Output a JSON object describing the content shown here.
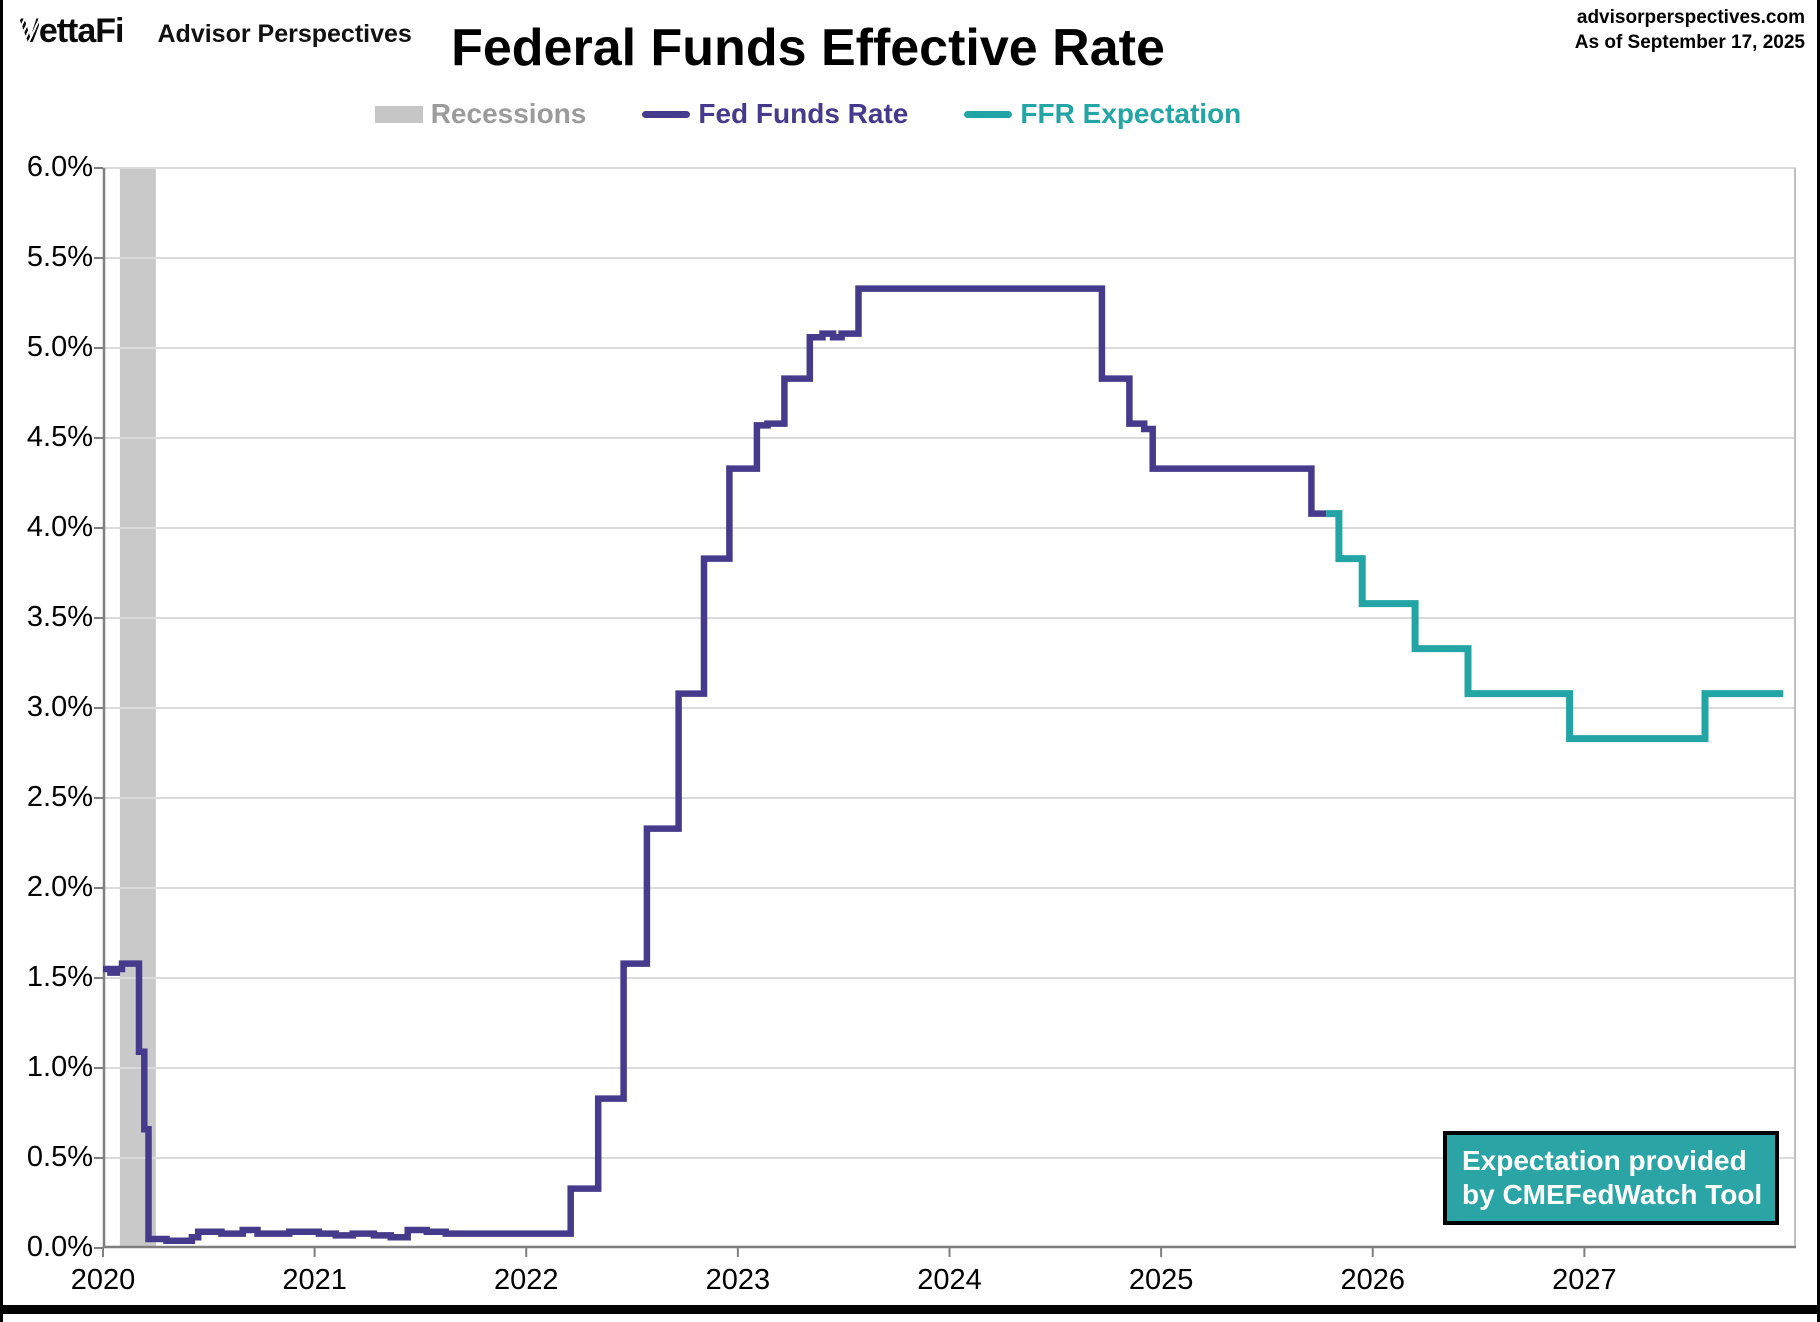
{
  "header": {
    "logo_primary_v": "V",
    "logo_primary_rest": "ettaFi",
    "logo_secondary": "Advisor Perspectives",
    "title": "Federal Funds Effective Rate",
    "source_site": "advisorperspectives.com",
    "as_of": "As of September 17, 2025"
  },
  "legend": [
    {
      "label": "Recessions",
      "swatch": "band",
      "swatch_color": "#c6c6c6",
      "text_color": "#9b9b9b"
    },
    {
      "label": "Fed Funds Rate",
      "swatch": "line",
      "swatch_color": "#463a8c",
      "text_color": "#463a8c"
    },
    {
      "label": "FFR Expectation",
      "swatch": "line",
      "swatch_color": "#22a5a4",
      "text_color": "#22a5a4"
    }
  ],
  "annotation_box": {
    "line1": "Expectation provided",
    "line2": "by CMEFedWatch Tool",
    "bg_color": "#2aa4a4"
  },
  "chart_data": {
    "type": "line",
    "title": "Federal Funds Effective Rate",
    "x_range": [
      2020,
      2028
    ],
    "y_range": [
      0,
      6
    ],
    "grid": true,
    "grid_color": "#dbdbdb",
    "axis_color": "#7f7f7f",
    "right_border_color": "#c0c0c0",
    "recession_color": "#c9c9c9",
    "recessions": [
      {
        "start": 2020.08,
        "end": 2020.25
      }
    ],
    "y_ticks": [
      0.0,
      0.5,
      1.0,
      1.5,
      2.0,
      2.5,
      3.0,
      3.5,
      4.0,
      4.5,
      5.0,
      5.5,
      6.0
    ],
    "y_tick_labels": [
      "0.0%",
      "0.5%",
      "1.0%",
      "1.5%",
      "2.0%",
      "2.5%",
      "3.0%",
      "3.5%",
      "4.0%",
      "4.5%",
      "5.0%",
      "5.5%",
      "6.0%"
    ],
    "x_ticks": [
      2020,
      2021,
      2022,
      2023,
      2024,
      2025,
      2026,
      2027
    ],
    "x_tick_labels": [
      "2020",
      "2021",
      "2022",
      "2023",
      "2024",
      "2025",
      "2026",
      "2027"
    ],
    "series": [
      {
        "name": "Fed Funds Rate",
        "color": "#463a8c",
        "width": 6.5,
        "step": true,
        "points": [
          [
            2020.0,
            1.55
          ],
          [
            2020.035,
            1.53
          ],
          [
            2020.065,
            1.55
          ],
          [
            2020.09,
            1.58
          ],
          [
            2020.17,
            1.09
          ],
          [
            2020.195,
            0.66
          ],
          [
            2020.215,
            0.05
          ],
          [
            2020.3,
            0.04
          ],
          [
            2020.42,
            0.06
          ],
          [
            2020.45,
            0.09
          ],
          [
            2020.56,
            0.08
          ],
          [
            2020.66,
            0.1
          ],
          [
            2020.73,
            0.08
          ],
          [
            2020.88,
            0.09
          ],
          [
            2021.02,
            0.08
          ],
          [
            2021.1,
            0.07
          ],
          [
            2021.18,
            0.08
          ],
          [
            2021.28,
            0.07
          ],
          [
            2021.36,
            0.06
          ],
          [
            2021.44,
            0.1
          ],
          [
            2021.53,
            0.09
          ],
          [
            2021.62,
            0.08
          ],
          [
            2021.8,
            0.08
          ],
          [
            2022.0,
            0.08
          ],
          [
            2022.21,
            0.33
          ],
          [
            2022.34,
            0.83
          ],
          [
            2022.46,
            1.58
          ],
          [
            2022.57,
            2.33
          ],
          [
            2022.72,
            3.08
          ],
          [
            2022.84,
            3.83
          ],
          [
            2022.96,
            4.33
          ],
          [
            2023.09,
            4.57
          ],
          [
            2023.14,
            4.58
          ],
          [
            2023.22,
            4.83
          ],
          [
            2023.34,
            5.06
          ],
          [
            2023.4,
            5.08
          ],
          [
            2023.45,
            5.06
          ],
          [
            2023.49,
            5.08
          ],
          [
            2023.57,
            5.33
          ],
          [
            2024.72,
            4.83
          ],
          [
            2024.85,
            4.58
          ],
          [
            2024.92,
            4.55
          ],
          [
            2024.96,
            4.33
          ],
          [
            2025.71,
            4.08
          ],
          [
            2025.78,
            4.08
          ]
        ]
      },
      {
        "name": "FFR Expectation",
        "color": "#22a5a4",
        "width": 7,
        "step": true,
        "points": [
          [
            2025.78,
            4.08
          ],
          [
            2025.84,
            3.83
          ],
          [
            2025.95,
            3.58
          ],
          [
            2026.2,
            3.33
          ],
          [
            2026.45,
            3.08
          ],
          [
            2026.93,
            2.83
          ],
          [
            2027.57,
            3.08
          ],
          [
            2027.94,
            3.08
          ]
        ]
      }
    ]
  }
}
